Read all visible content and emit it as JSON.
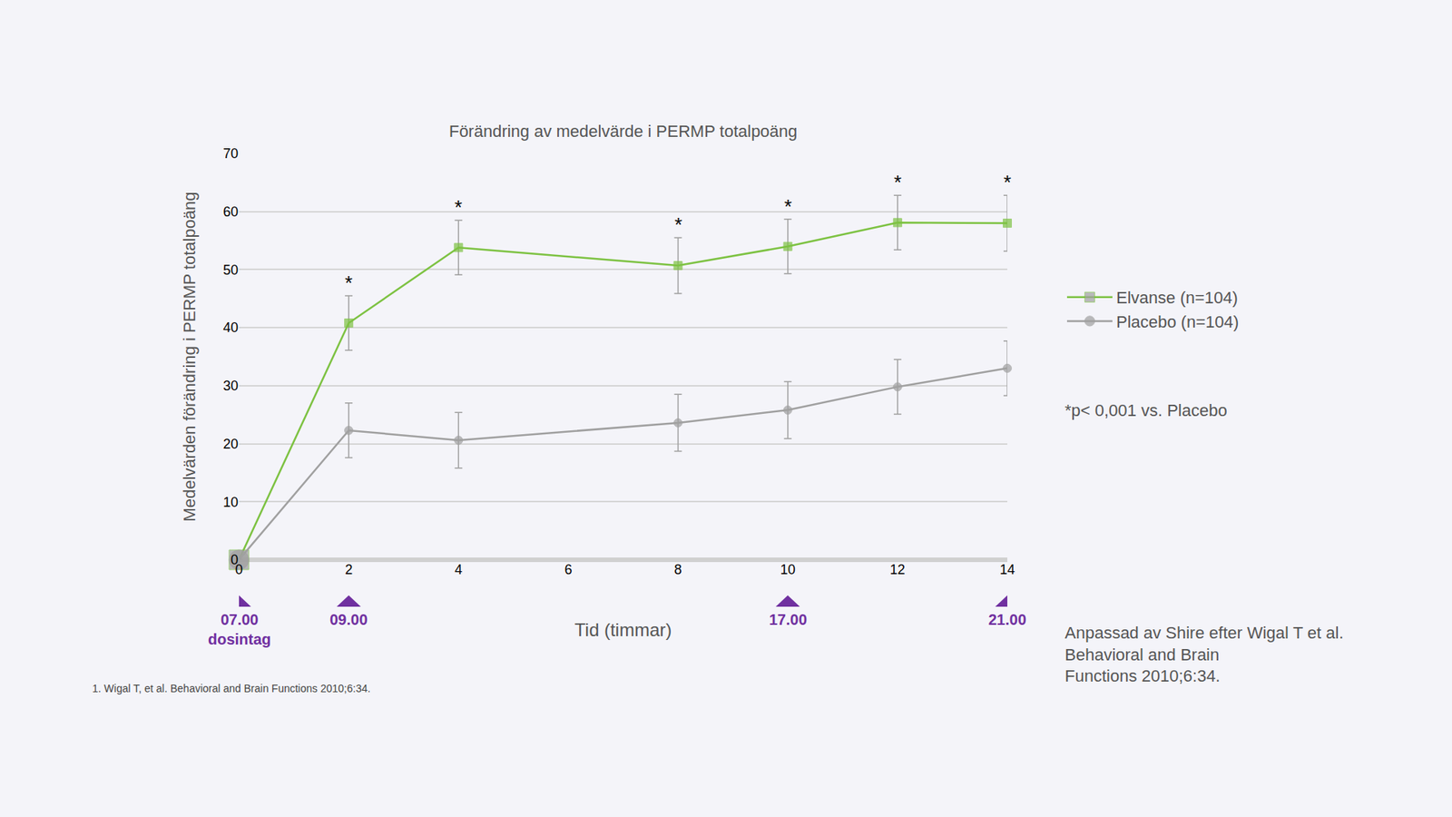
{
  "chart_data": {
    "type": "line",
    "title": "Förändring av medelvärde i PERMP totalpoäng",
    "x_title": "Tid (timmar)",
    "y_title": "Medelvärden förändring i PERMP totalpoäng",
    "x": [
      0,
      2,
      4,
      8,
      10,
      12,
      14
    ],
    "series": [
      {
        "name": "Elvanse (n=104)",
        "color": "#7dc242",
        "marker": "square",
        "values": [
          0,
          40.8,
          53.8,
          50.7,
          54.0,
          58.1,
          58.0
        ],
        "error": [
          null,
          4.7,
          4.7,
          4.8,
          4.7,
          4.7,
          4.8
        ]
      },
      {
        "name": "Placebo (n=104)",
        "color": "#a0a0a0",
        "marker": "circle",
        "values": [
          0,
          22.3,
          20.6,
          23.6,
          25.8,
          29.8,
          33.0
        ],
        "error": [
          null,
          4.7,
          4.8,
          4.9,
          4.9,
          4.7,
          4.7
        ]
      }
    ],
    "xlim": [
      0,
      14
    ],
    "xticks": [
      0,
      2,
      4,
      6,
      8,
      10,
      12,
      14
    ],
    "ylim": [
      0,
      70
    ],
    "yticks": [
      0,
      10,
      20,
      30,
      40,
      50,
      60,
      70
    ],
    "grid": true,
    "legend": "right",
    "significance": {
      "series": "Elvanse (n=104)",
      "symbol": "*",
      "x": [
        2,
        4,
        8,
        10,
        12,
        14
      ],
      "note": "*p< 0,001 vs. Placebo"
    },
    "time_markers": [
      {
        "x": 0,
        "label": "07.00",
        "sublabel": "dosintag"
      },
      {
        "x": 2,
        "label": "09.00"
      },
      {
        "x": 10,
        "label": "17.00"
      },
      {
        "x": 14,
        "label": "21.00"
      }
    ],
    "source": "Anpassad av Shire efter Wigal T et al. Behavioral and Brain Functions 2010;6:34.",
    "footnote": "1. Wigal T, et al. Behavioral and Brain Functions 2010;6:34."
  }
}
